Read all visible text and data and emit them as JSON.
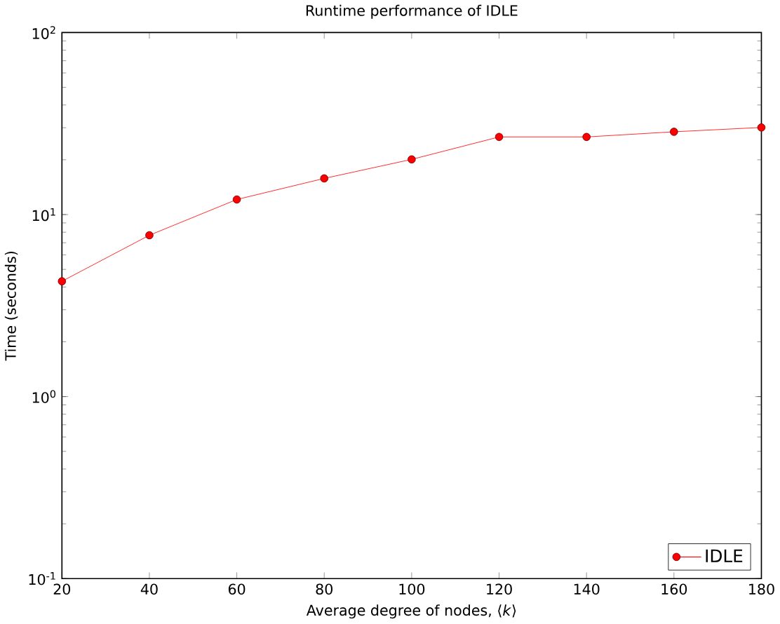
{
  "chart_data": {
    "type": "line",
    "title": "Runtime performance of IDLE",
    "xlabel": "Average degree of nodes, ⟨*k*⟩",
    "ylabel": "Time (seconds)",
    "x": [
      20,
      40,
      60,
      80,
      100,
      120,
      140,
      160,
      180
    ],
    "series": [
      {
        "name": "IDLE",
        "color": "#ff0000",
        "values": [
          4.3,
          7.7,
          12.1,
          15.8,
          20.1,
          26.7,
          26.7,
          28.5,
          30.1
        ]
      }
    ],
    "xlim": [
      20,
      180
    ],
    "xticks": [
      20,
      40,
      60,
      80,
      100,
      120,
      140,
      160,
      180
    ],
    "ylim": [
      0.1,
      100
    ],
    "yticks": [
      {
        "value": 0.1,
        "label": "10$^{-1}$"
      },
      {
        "value": 1,
        "label": "10$^{0}$"
      },
      {
        "value": 10,
        "label": "10$^{1}$"
      },
      {
        "value": 100,
        "label": "10$^{2}$"
      }
    ],
    "log": "y",
    "grid": false,
    "legend": "bottom right",
    "marker": "circle",
    "line_style": "solid"
  }
}
